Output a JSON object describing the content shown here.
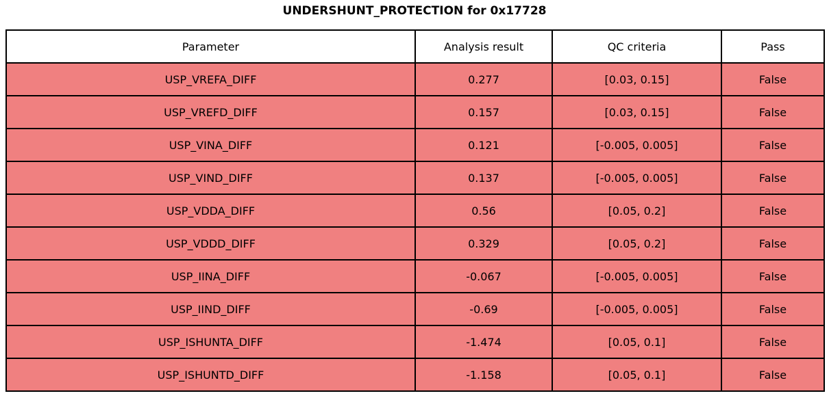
{
  "page": {
    "title": "UNDERSHUNT_PROTECTION for 0x17728"
  },
  "colors": {
    "fail_row_bg": "#F08080",
    "header_bg": "#FFFFFF",
    "border": "#000000",
    "text": "#000000"
  },
  "chart_data": {
    "type": "table",
    "title": "UNDERSHUNT_PROTECTION for 0x17728",
    "columns": [
      "Parameter",
      "Analysis result",
      "QC criteria",
      "Pass"
    ],
    "rows": [
      [
        "USP_VREFA_DIFF",
        "0.277",
        "[0.03, 0.15]",
        "False"
      ],
      [
        "USP_VREFD_DIFF",
        "0.157",
        "[0.03, 0.15]",
        "False"
      ],
      [
        "USP_VINA_DIFF",
        "0.121",
        "[-0.005, 0.005]",
        "False"
      ],
      [
        "USP_VIND_DIFF",
        "0.137",
        "[-0.005, 0.005]",
        "False"
      ],
      [
        "USP_VDDA_DIFF",
        "0.56",
        "[0.05, 0.2]",
        "False"
      ],
      [
        "USP_VDDD_DIFF",
        "0.329",
        "[0.05, 0.2]",
        "False"
      ],
      [
        "USP_IINA_DIFF",
        "-0.067",
        "[-0.005, 0.005]",
        "False"
      ],
      [
        "USP_IIND_DIFF",
        "-0.69",
        "[-0.005, 0.005]",
        "False"
      ],
      [
        "USP_ISHUNTA_DIFF",
        "-1.474",
        "[0.05, 0.1]",
        "False"
      ],
      [
        "USP_ISHUNTD_DIFF",
        "-1.158",
        "[0.05, 0.1]",
        "False"
      ]
    ],
    "layout": {
      "grid": true,
      "header_background": "#FFFFFF",
      "row_background": "#F08080",
      "all_rows_status": "False"
    }
  }
}
